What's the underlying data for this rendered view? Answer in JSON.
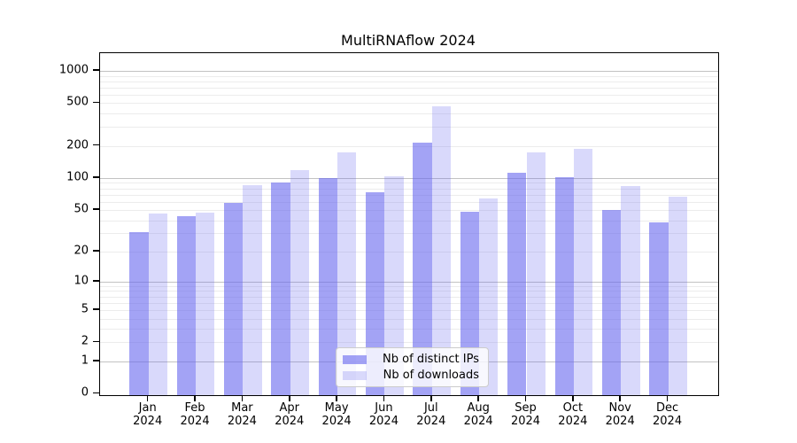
{
  "chart_data": {
    "type": "bar",
    "title": "MultiRNAflow 2024",
    "categories": [
      "Jan 2024",
      "Feb 2024",
      "Mar 2024",
      "Apr 2024",
      "May 2024",
      "Jun 2024",
      "Jul 2024",
      "Aug 2024",
      "Sep 2024",
      "Oct 2024",
      "Nov 2024",
      "Dec 2024"
    ],
    "series": [
      {
        "name": "Nb of distinct IPs",
        "fill": "rgba(102,102,238,0.6)",
        "values": [
          31,
          44,
          58,
          90,
          100,
          73,
          215,
          48,
          112,
          101,
          50,
          38
        ]
      },
      {
        "name": "Nb of downloads",
        "fill": "rgba(102,102,238,0.25)",
        "values": [
          46,
          47,
          85,
          118,
          175,
          104,
          470,
          64,
          174,
          188,
          84,
          67
        ]
      }
    ],
    "yscale": "log1p",
    "ylim": [
      0,
      1460
    ],
    "yticks": [
      0,
      1,
      2,
      5,
      10,
      20,
      50,
      100,
      200,
      500,
      1000
    ],
    "gridlines_major": [
      1,
      10,
      100,
      1000
    ],
    "gridlines_minor": [
      2,
      3,
      4,
      5,
      6,
      7,
      8,
      9,
      20,
      30,
      40,
      50,
      60,
      70,
      80,
      90,
      200,
      300,
      400,
      500,
      600,
      700,
      800,
      900
    ],
    "grid": true,
    "legend_position": "inside-bottom-center",
    "colors": {
      "bar_base": "#6666ee",
      "grid_minor": "#ececec",
      "grid_major": "#c2c2c2",
      "spine": "#000000",
      "legend_border": "#cccccc"
    }
  }
}
